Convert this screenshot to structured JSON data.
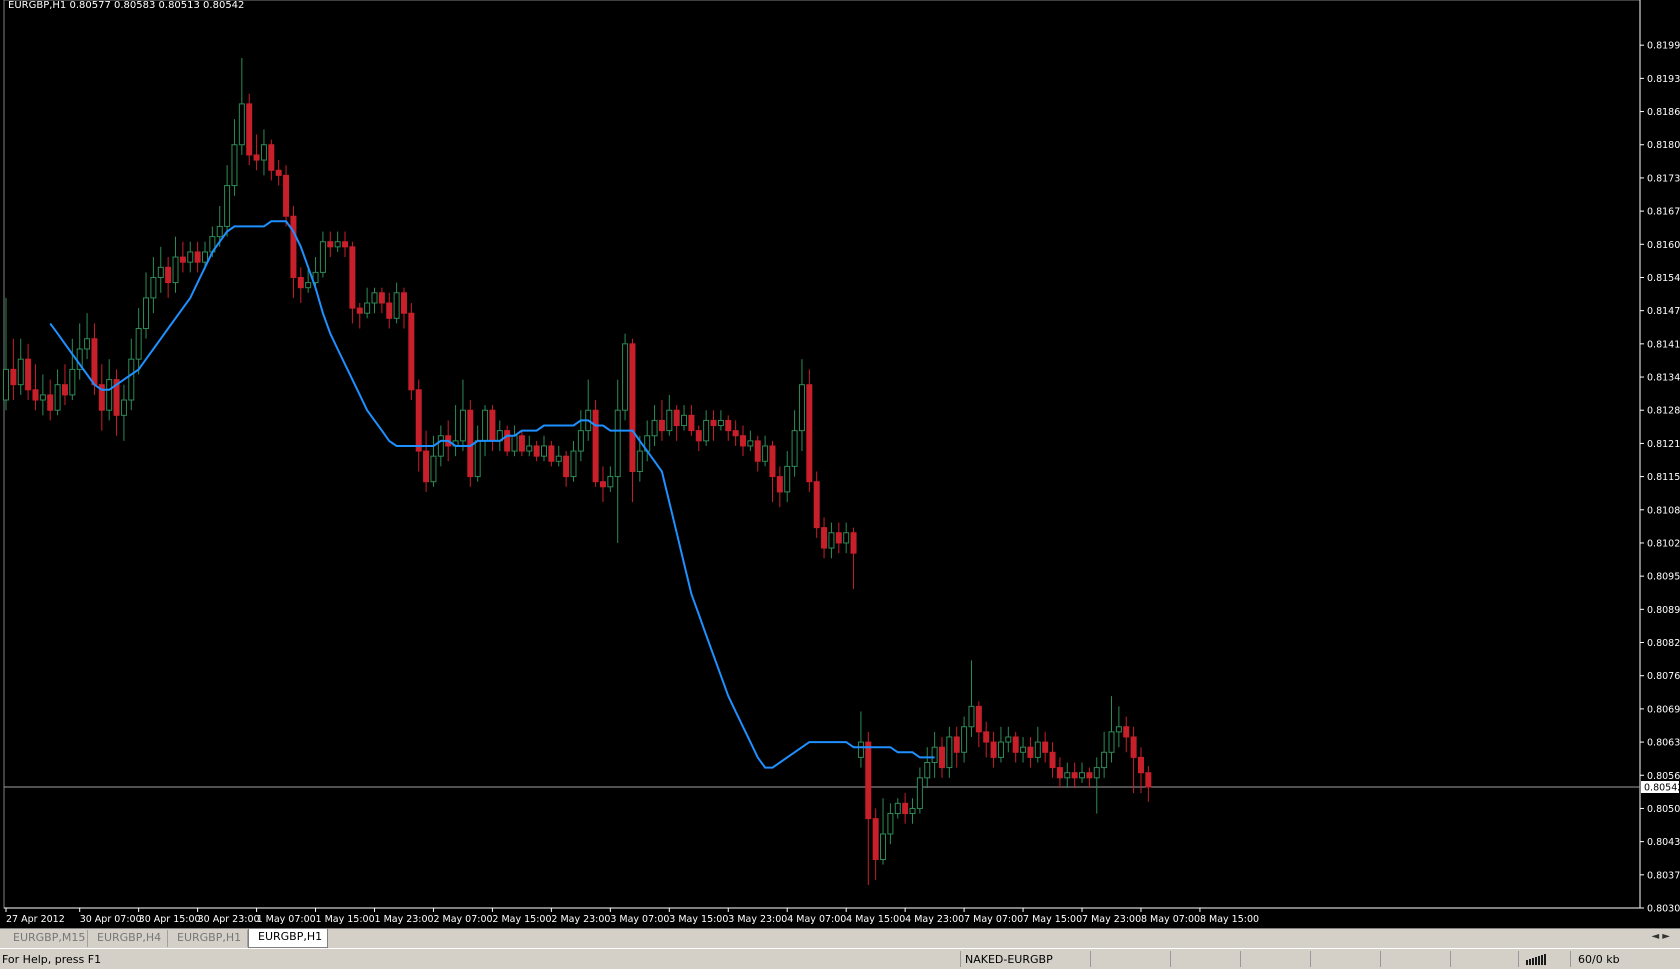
{
  "header": {
    "symbol_text": "EURGBP,H1  0.80577 0.80583 0.80513 0.80542"
  },
  "colors": {
    "background": "#000000",
    "bull_candle": "#2e8b57",
    "bear_candle": "#c8202a",
    "ma_line": "#1e90ff",
    "price_line": "#a0a0a0",
    "axis_text": "#ffffff"
  },
  "chart_data": {
    "type": "candlestick",
    "title": "EURGBP,H1",
    "ohlc_readout": {
      "open": 0.80577,
      "high": 0.80583,
      "low": 0.80513,
      "close": 0.80542
    },
    "ylim": [
      0.80305,
      0.8206
    ],
    "y_ticks": [
      "0.81995",
      "0.81930",
      "0.81865",
      "0.81800",
      "0.81735",
      "0.81670",
      "0.81605",
      "0.81540",
      "0.81475",
      "0.81410",
      "0.81345",
      "0.81280",
      "0.81215",
      "0.81150",
      "0.81085",
      "0.81020",
      "0.80955",
      "0.80890",
      "0.80825",
      "0.80760",
      "0.80695",
      "0.80630",
      "0.80565",
      "0.80500",
      "0.80435",
      "0.80370",
      "0.80305"
    ],
    "current_price_label": "0.80542",
    "current_price": 0.80542,
    "x_ticks": [
      {
        "label": "27 Apr 2012",
        "index": 0
      },
      {
        "label": "30 Apr 07:00",
        "index": 10
      },
      {
        "label": "30 Apr 15:00",
        "index": 18
      },
      {
        "label": "30 Apr 23:00",
        "index": 26
      },
      {
        "label": "1 May 07:00",
        "index": 34
      },
      {
        "label": "1 May 15:00",
        "index": 42
      },
      {
        "label": "1 May 23:00",
        "index": 50
      },
      {
        "label": "2 May 07:00",
        "index": 58
      },
      {
        "label": "2 May 15:00",
        "index": 66
      },
      {
        "label": "2 May 23:00",
        "index": 74
      },
      {
        "label": "3 May 07:00",
        "index": 82
      },
      {
        "label": "3 May 15:00",
        "index": 90
      },
      {
        "label": "3 May 23:00",
        "index": 98
      },
      {
        "label": "4 May 07:00",
        "index": 106
      },
      {
        "label": "4 May 15:00",
        "index": 114
      },
      {
        "label": "4 May 23:00",
        "index": 122
      },
      {
        "label": "7 May 07:00",
        "index": 130
      },
      {
        "label": "7 May 15:00",
        "index": 138
      },
      {
        "label": "7 May 23:00",
        "index": 146
      },
      {
        "label": "8 May 07:00",
        "index": 154
      },
      {
        "label": "8 May 15:00",
        "index": 162
      }
    ],
    "candles": [
      [
        0.813,
        0.8136,
        0.815,
        0.8128
      ],
      [
        0.8136,
        0.8133,
        0.8142,
        0.813
      ],
      [
        0.8133,
        0.8138,
        0.8142,
        0.8131
      ],
      [
        0.8138,
        0.8132,
        0.8141,
        0.813
      ],
      [
        0.8132,
        0.813,
        0.8137,
        0.8128
      ],
      [
        0.813,
        0.8131,
        0.8135,
        0.8127
      ],
      [
        0.8131,
        0.8128,
        0.8134,
        0.8126
      ],
      [
        0.8128,
        0.8133,
        0.8136,
        0.8127
      ],
      [
        0.8133,
        0.8131,
        0.8137,
        0.8129
      ],
      [
        0.8131,
        0.8136,
        0.8142,
        0.813
      ],
      [
        0.8136,
        0.814,
        0.8145,
        0.8134
      ],
      [
        0.814,
        0.8142,
        0.8147,
        0.8138
      ],
      [
        0.8142,
        0.8133,
        0.8145,
        0.8131
      ],
      [
        0.8133,
        0.8128,
        0.8137,
        0.8124
      ],
      [
        0.8128,
        0.8134,
        0.8138,
        0.8126
      ],
      [
        0.8134,
        0.8127,
        0.8136,
        0.8123
      ],
      [
        0.8127,
        0.813,
        0.8133,
        0.8122
      ],
      [
        0.813,
        0.8138,
        0.8142,
        0.8128
      ],
      [
        0.8138,
        0.8144,
        0.8148,
        0.8135
      ],
      [
        0.8144,
        0.815,
        0.8155,
        0.8142
      ],
      [
        0.815,
        0.8154,
        0.8158,
        0.8147
      ],
      [
        0.8154,
        0.8156,
        0.816,
        0.8151
      ],
      [
        0.8156,
        0.8153,
        0.8158,
        0.815
      ],
      [
        0.8153,
        0.8158,
        0.8162,
        0.8151
      ],
      [
        0.8158,
        0.8157,
        0.8161,
        0.8155
      ],
      [
        0.8157,
        0.8159,
        0.8161,
        0.8155
      ],
      [
        0.8159,
        0.8157,
        0.8161,
        0.8155
      ],
      [
        0.8157,
        0.8159,
        0.8161,
        0.8156
      ],
      [
        0.8159,
        0.8162,
        0.8164,
        0.8158
      ],
      [
        0.8162,
        0.8164,
        0.8168,
        0.816
      ],
      [
        0.8164,
        0.8172,
        0.8176,
        0.8162
      ],
      [
        0.8172,
        0.818,
        0.8185,
        0.817
      ],
      [
        0.818,
        0.8188,
        0.8197,
        0.8178
      ],
      [
        0.8188,
        0.8178,
        0.819,
        0.8176
      ],
      [
        0.8178,
        0.8177,
        0.8182,
        0.8175
      ],
      [
        0.8177,
        0.818,
        0.8183,
        0.8174
      ],
      [
        0.818,
        0.8175,
        0.8181,
        0.8173
      ],
      [
        0.8175,
        0.8174,
        0.8177,
        0.8172
      ],
      [
        0.8174,
        0.8166,
        0.8176,
        0.8164
      ],
      [
        0.8166,
        0.8154,
        0.8168,
        0.815
      ],
      [
        0.8154,
        0.8152,
        0.8156,
        0.8149
      ],
      [
        0.8152,
        0.8153,
        0.8156,
        0.8151
      ],
      [
        0.8153,
        0.8155,
        0.8158,
        0.8152
      ],
      [
        0.8155,
        0.8161,
        0.8163,
        0.8154
      ],
      [
        0.8161,
        0.816,
        0.8163,
        0.8158
      ],
      [
        0.816,
        0.8161,
        0.8163,
        0.8159
      ],
      [
        0.8161,
        0.816,
        0.8163,
        0.8158
      ],
      [
        0.816,
        0.8148,
        0.8161,
        0.8145
      ],
      [
        0.8148,
        0.8147,
        0.8149,
        0.8144
      ],
      [
        0.8147,
        0.8149,
        0.8152,
        0.8146
      ],
      [
        0.8149,
        0.8151,
        0.8152,
        0.8147
      ],
      [
        0.8151,
        0.8149,
        0.8152,
        0.8147
      ],
      [
        0.8149,
        0.8146,
        0.8151,
        0.8144
      ],
      [
        0.8146,
        0.8151,
        0.8153,
        0.8145
      ],
      [
        0.8151,
        0.8147,
        0.8152,
        0.8144
      ],
      [
        0.8147,
        0.8132,
        0.8149,
        0.813
      ],
      [
        0.8132,
        0.812,
        0.8134,
        0.8116
      ],
      [
        0.812,
        0.8114,
        0.8124,
        0.8112
      ],
      [
        0.8114,
        0.8119,
        0.8123,
        0.8113
      ],
      [
        0.8119,
        0.8123,
        0.8125,
        0.8117
      ],
      [
        0.8123,
        0.8121,
        0.8126,
        0.8118
      ],
      [
        0.8121,
        0.8122,
        0.8129,
        0.8119
      ],
      [
        0.8122,
        0.8128,
        0.8134,
        0.812
      ],
      [
        0.8128,
        0.8115,
        0.813,
        0.8113
      ],
      [
        0.8115,
        0.8122,
        0.8125,
        0.8114
      ],
      [
        0.8122,
        0.8128,
        0.8129,
        0.8119
      ],
      [
        0.8128,
        0.8122,
        0.8129,
        0.812
      ],
      [
        0.8122,
        0.8124,
        0.8126,
        0.812
      ],
      [
        0.8124,
        0.812,
        0.8125,
        0.8119
      ],
      [
        0.812,
        0.8123,
        0.8125,
        0.8119
      ],
      [
        0.8123,
        0.812,
        0.8124,
        0.8119
      ],
      [
        0.812,
        0.8121,
        0.8123,
        0.8119
      ],
      [
        0.8121,
        0.8119,
        0.8122,
        0.8118
      ],
      [
        0.8119,
        0.8121,
        0.8123,
        0.8118
      ],
      [
        0.8121,
        0.8118,
        0.8122,
        0.8117
      ],
      [
        0.8118,
        0.8119,
        0.8121,
        0.8117
      ],
      [
        0.8119,
        0.8115,
        0.812,
        0.8113
      ],
      [
        0.8115,
        0.812,
        0.8122,
        0.8114
      ],
      [
        0.812,
        0.8124,
        0.8128,
        0.8118
      ],
      [
        0.8124,
        0.8128,
        0.8134,
        0.8122
      ],
      [
        0.8128,
        0.8114,
        0.813,
        0.8113
      ],
      [
        0.8114,
        0.8113,
        0.8117,
        0.811
      ],
      [
        0.8113,
        0.8115,
        0.8117,
        0.8112
      ],
      [
        0.8115,
        0.8128,
        0.8134,
        0.8102
      ],
      [
        0.8128,
        0.8141,
        0.8143,
        0.8126
      ],
      [
        0.8141,
        0.8116,
        0.8142,
        0.811
      ],
      [
        0.8116,
        0.812,
        0.8123,
        0.8114
      ],
      [
        0.812,
        0.8123,
        0.8126,
        0.8118
      ],
      [
        0.8123,
        0.8126,
        0.8129,
        0.8121
      ],
      [
        0.8126,
        0.8124,
        0.813,
        0.8122
      ],
      [
        0.8124,
        0.8128,
        0.8131,
        0.8123
      ],
      [
        0.8128,
        0.8125,
        0.8129,
        0.8122
      ],
      [
        0.8125,
        0.8127,
        0.8129,
        0.8124
      ],
      [
        0.8127,
        0.8124,
        0.8129,
        0.8123
      ],
      [
        0.8124,
        0.8122,
        0.8125,
        0.812
      ],
      [
        0.8122,
        0.8126,
        0.8128,
        0.8121
      ],
      [
        0.8126,
        0.8125,
        0.8128,
        0.8122
      ],
      [
        0.8125,
        0.8126,
        0.8128,
        0.8124
      ],
      [
        0.8126,
        0.8124,
        0.8127,
        0.8122
      ],
      [
        0.8124,
        0.8123,
        0.8126,
        0.8121
      ],
      [
        0.8123,
        0.8121,
        0.8125,
        0.8119
      ],
      [
        0.8121,
        0.8122,
        0.8124,
        0.812
      ],
      [
        0.8122,
        0.8118,
        0.8123,
        0.8116
      ],
      [
        0.8118,
        0.8121,
        0.8123,
        0.8117
      ],
      [
        0.8121,
        0.8115,
        0.8122,
        0.811
      ],
      [
        0.8115,
        0.8112,
        0.8117,
        0.8109
      ],
      [
        0.8112,
        0.8117,
        0.812,
        0.811
      ],
      [
        0.8117,
        0.8124,
        0.8128,
        0.8115
      ],
      [
        0.8124,
        0.8133,
        0.8138,
        0.812
      ],
      [
        0.8133,
        0.8114,
        0.8136,
        0.8112
      ],
      [
        0.8114,
        0.8105,
        0.8116,
        0.8103
      ],
      [
        0.8105,
        0.8101,
        0.8107,
        0.8099
      ],
      [
        0.8101,
        0.8104,
        0.8106,
        0.8099
      ],
      [
        0.8104,
        0.8102,
        0.8106,
        0.81
      ],
      [
        0.8102,
        0.8104,
        0.8106,
        0.81
      ],
      [
        0.8104,
        0.81,
        0.8105,
        0.8093
      ],
      [
        0.806,
        0.8063,
        0.8069,
        0.8058
      ],
      [
        0.8063,
        0.8048,
        0.8065,
        0.8035
      ],
      [
        0.8048,
        0.804,
        0.805,
        0.8036
      ],
      [
        0.804,
        0.8045,
        0.8052,
        0.8039
      ],
      [
        0.8045,
        0.8049,
        0.8051,
        0.8043
      ],
      [
        0.8049,
        0.8051,
        0.8052,
        0.8048
      ],
      [
        0.8051,
        0.8049,
        0.8053,
        0.8047
      ],
      [
        0.8049,
        0.805,
        0.8052,
        0.8047
      ],
      [
        0.805,
        0.8056,
        0.8058,
        0.8049
      ],
      [
        0.8056,
        0.8059,
        0.8062,
        0.8054
      ],
      [
        0.8059,
        0.8062,
        0.8065,
        0.8056
      ],
      [
        0.8062,
        0.8058,
        0.8064,
        0.8056
      ],
      [
        0.8058,
        0.8064,
        0.8066,
        0.8056
      ],
      [
        0.8064,
        0.8061,
        0.8066,
        0.8058
      ],
      [
        0.8061,
        0.8066,
        0.8068,
        0.8059
      ],
      [
        0.8066,
        0.807,
        0.8079,
        0.8064
      ],
      [
        0.807,
        0.8065,
        0.8071,
        0.8062
      ],
      [
        0.8065,
        0.8063,
        0.8067,
        0.806
      ],
      [
        0.8063,
        0.806,
        0.8065,
        0.8058
      ],
      [
        0.806,
        0.8063,
        0.8066,
        0.8059
      ],
      [
        0.8063,
        0.8064,
        0.8066,
        0.8061
      ],
      [
        0.8064,
        0.8061,
        0.8065,
        0.8059
      ],
      [
        0.8061,
        0.8062,
        0.8064,
        0.8059
      ],
      [
        0.8062,
        0.806,
        0.8064,
        0.8058
      ],
      [
        0.806,
        0.8063,
        0.8066,
        0.8059
      ],
      [
        0.8063,
        0.8061,
        0.8065,
        0.8059
      ],
      [
        0.8061,
        0.8058,
        0.8063,
        0.8056
      ],
      [
        0.8058,
        0.8056,
        0.806,
        0.8054
      ],
      [
        0.8056,
        0.8057,
        0.8059,
        0.8054
      ],
      [
        0.8057,
        0.8056,
        0.8059,
        0.8054
      ],
      [
        0.8056,
        0.8057,
        0.8059,
        0.8055
      ],
      [
        0.8057,
        0.8056,
        0.8058,
        0.8054
      ],
      [
        0.8056,
        0.8058,
        0.806,
        0.8049
      ],
      [
        0.8058,
        0.8061,
        0.8065,
        0.8056
      ],
      [
        0.8061,
        0.8065,
        0.8072,
        0.8059
      ],
      [
        0.8065,
        0.8066,
        0.807,
        0.8062
      ],
      [
        0.8066,
        0.8064,
        0.8068,
        0.8061
      ],
      [
        0.8064,
        0.806,
        0.8066,
        0.8053
      ],
      [
        0.806,
        0.8057,
        0.8062,
        0.8053
      ],
      [
        0.8057,
        0.80542,
        0.80583,
        0.80513
      ]
    ],
    "ma_start_index": 6,
    "ma_values": [
      0.8145,
      0.8143,
      0.8141,
      0.8139,
      0.8137,
      0.8135,
      0.8133,
      0.8132,
      0.8132,
      0.8133,
      0.8134,
      0.8135,
      0.8136,
      0.8138,
      0.814,
      0.8142,
      0.8144,
      0.8146,
      0.8148,
      0.815,
      0.8153,
      0.8156,
      0.8159,
      0.8161,
      0.8163,
      0.8164,
      0.8164,
      0.8164,
      0.8164,
      0.8164,
      0.8165,
      0.8165,
      0.8165,
      0.8163,
      0.816,
      0.8156,
      0.8152,
      0.8147,
      0.8143,
      0.814,
      0.8137,
      0.8134,
      0.8131,
      0.8128,
      0.8126,
      0.8124,
      0.8122,
      0.8121,
      0.8121,
      0.8121,
      0.8121,
      0.8121,
      0.8121,
      0.8122,
      0.8122,
      0.8121,
      0.8121,
      0.8121,
      0.8122,
      0.8122,
      0.8122,
      0.8122,
      0.8123,
      0.8123,
      0.8124,
      0.8124,
      0.8124,
      0.8125,
      0.8125,
      0.8125,
      0.8125,
      0.8125,
      0.8126,
      0.8126,
      0.8125,
      0.8125,
      0.8124,
      0.8124,
      0.8124,
      0.8124,
      0.8122,
      0.812,
      0.8118,
      0.8116,
      0.811,
      0.8104,
      0.8098,
      0.8092,
      0.8088,
      0.8084,
      0.808,
      0.8076,
      0.8072,
      0.8069,
      0.8066,
      0.8063,
      0.806,
      0.8058,
      0.8058,
      0.8059,
      0.806,
      0.8061,
      0.8062,
      0.8063,
      0.8063,
      0.8063,
      0.8063,
      0.8063,
      0.8063,
      0.8062,
      0.8062,
      0.8062,
      0.8062,
      0.8062,
      0.8062,
      0.8061,
      0.8061,
      0.8061,
      0.806,
      0.806,
      0.806
    ]
  },
  "tabs": [
    {
      "label": "EURGBP,M15",
      "active": false
    },
    {
      "label": "EURGBP,H4",
      "active": false
    },
    {
      "label": "EURGBP,H1",
      "active": false
    },
    {
      "label": "EURGBP,H1",
      "active": true
    }
  ],
  "tab_scroll": "◄ ►",
  "status": {
    "help_text": "For Help, press F1",
    "profile": "NAKED-EURGBP",
    "traffic": "60/0 kb"
  }
}
